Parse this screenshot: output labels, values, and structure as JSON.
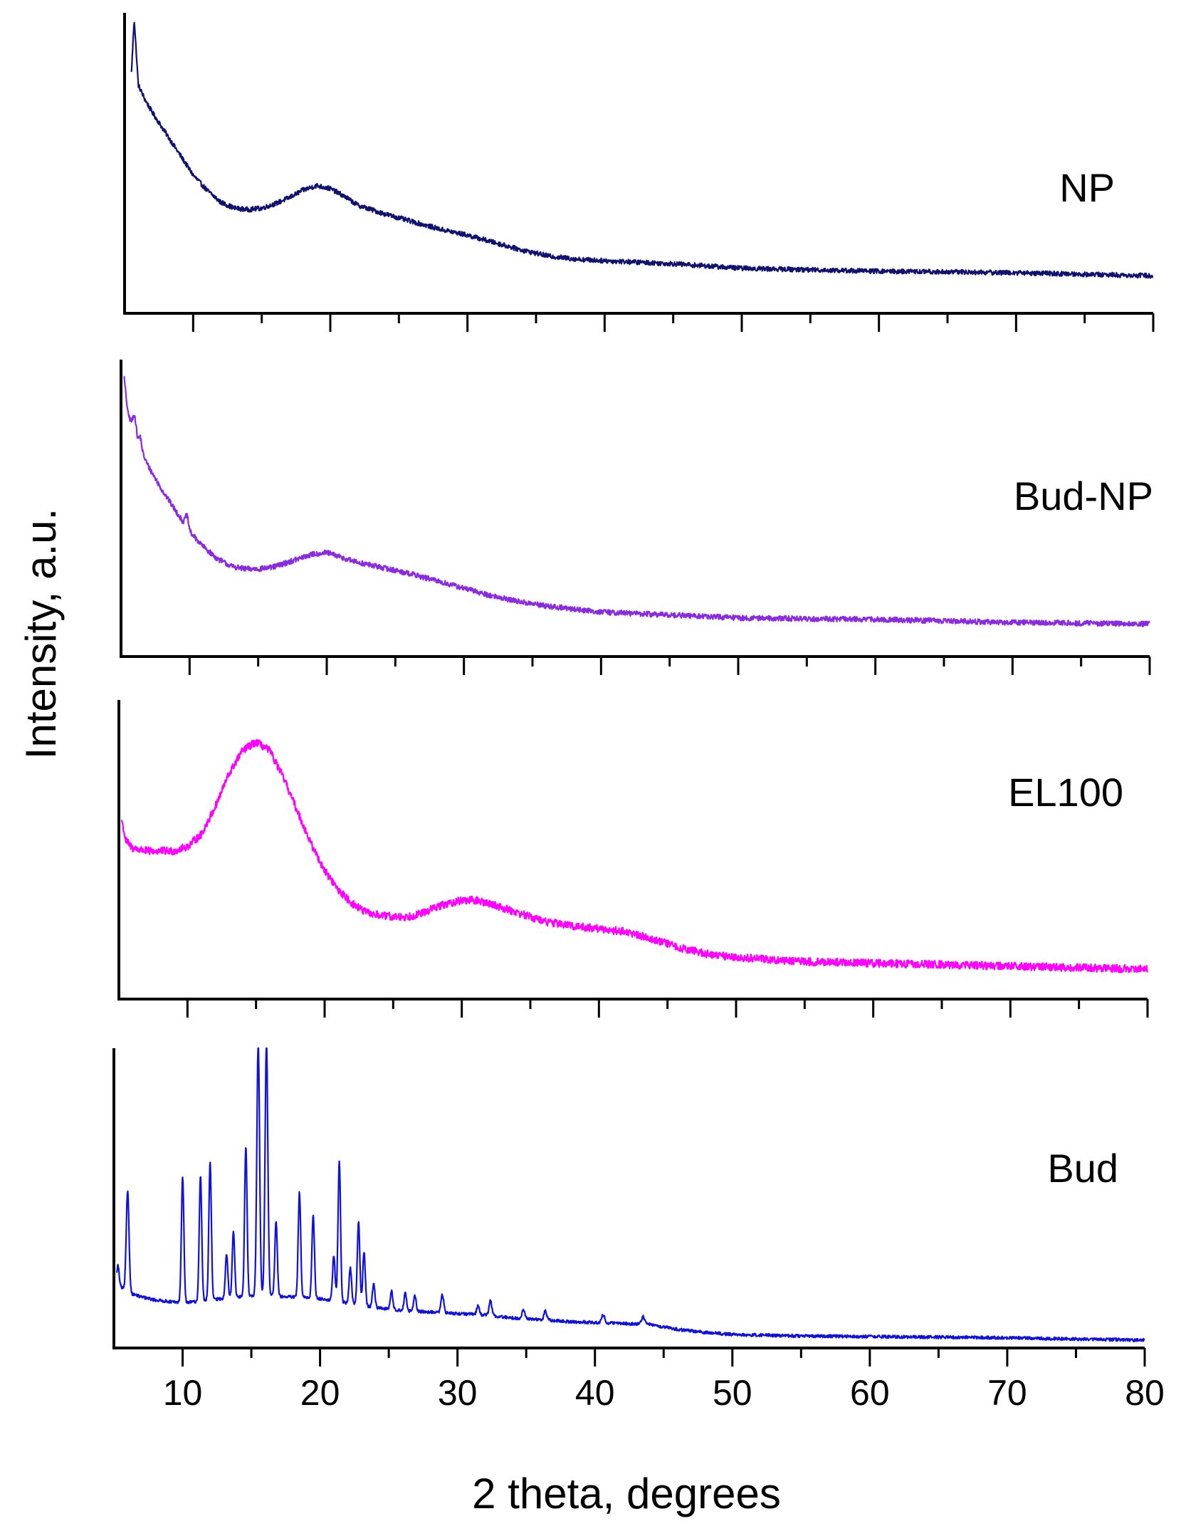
{
  "chart_data": {
    "type": "line",
    "title": "",
    "xlabel": "2 theta, degrees",
    "ylabel": "Intensity, a.u.",
    "xlim": [
      5,
      80
    ],
    "ylim": [
      0,
      100
    ],
    "x_ticks": [
      10,
      20,
      30,
      40,
      50,
      60,
      70,
      80
    ],
    "x_minor_step": 5,
    "y_ticks_shown": false,
    "grid": false,
    "layout": "stacked panels, shared x-axis",
    "panels": [
      {
        "name": "NP",
        "label": "NP",
        "color": "#101070",
        "noise": 0.8,
        "x": [
          5.5,
          5.7,
          6.0,
          6.5,
          7,
          8,
          9,
          10,
          11,
          12,
          13,
          14,
          15,
          16,
          17,
          18,
          19,
          20,
          21,
          22,
          24,
          26,
          28,
          30,
          32,
          34,
          36,
          38,
          40,
          45,
          50,
          55,
          60,
          65,
          70,
          75,
          80
        ],
        "y": [
          80,
          98,
          76,
          71,
          67,
          60,
          53,
          46,
          41,
          37,
          35,
          34.5,
          35,
          36.5,
          38.5,
          41,
          42.5,
          41.5,
          39,
          36,
          33,
          30.5,
          28,
          26,
          23.5,
          21,
          19,
          18,
          17.5,
          16.5,
          15,
          14.5,
          14,
          13.8,
          13.5,
          13,
          12.5
        ],
        "peaks": []
      },
      {
        "name": "Bud-NP",
        "label": "Bud-NP",
        "color": "#8a2be2",
        "noise": 0.9,
        "x": [
          5.2,
          5.5,
          5.8,
          6.2,
          6.6,
          7,
          8,
          9,
          10,
          11,
          12,
          13,
          14,
          15,
          16,
          17,
          18,
          19,
          20,
          21,
          22,
          24,
          26,
          28,
          30,
          32,
          34,
          36,
          38,
          40,
          45,
          50,
          60,
          70,
          80
        ],
        "y": [
          95,
          82,
          78,
          72,
          68,
          64,
          56,
          49,
          42,
          37,
          33,
          30.5,
          29.5,
          29.5,
          30,
          31.5,
          33,
          34.5,
          35,
          33.5,
          32,
          30,
          28,
          25.5,
          23,
          20.5,
          18.5,
          17,
          16,
          15,
          14,
          13,
          12.5,
          11.5,
          11
        ],
        "peaks": [
          [
            9.8,
            4,
            0.12
          ],
          [
            6.0,
            6,
            0.12
          ],
          [
            6.4,
            4,
            0.1
          ]
        ]
      },
      {
        "name": "EL100",
        "label": "EL100",
        "color": "#ff00ff",
        "noise": 1.3,
        "x": [
          5.2,
          5.5,
          6,
          7,
          8,
          9,
          10,
          11,
          12,
          13,
          14,
          15,
          16,
          17,
          18,
          19,
          20,
          21,
          22,
          23,
          24,
          25,
          26,
          27,
          28,
          29,
          30,
          31,
          32,
          33,
          34,
          35,
          36,
          38,
          40,
          42,
          44,
          46,
          48,
          50,
          55,
          60,
          65,
          70,
          75,
          80
        ],
        "y": [
          60,
          53,
          50.5,
          49.5,
          49.5,
          49.5,
          51,
          55,
          64,
          75,
          83,
          86,
          83,
          74,
          63,
          52,
          43,
          36.5,
          32,
          29,
          28,
          27.5,
          27.5,
          28.5,
          30.5,
          32,
          33,
          33,
          32,
          30.5,
          29,
          27.5,
          26,
          24.5,
          23.5,
          22.5,
          20,
          17,
          15,
          14,
          12.5,
          12,
          11.5,
          11,
          10.5,
          10
        ],
        "peaks": []
      },
      {
        "name": "Bud",
        "label": "Bud",
        "color": "#1010e0",
        "noise": 0.5,
        "x": [
          5.2,
          5.6,
          6,
          7,
          8,
          9,
          10,
          12,
          14,
          16,
          18,
          20,
          22,
          24,
          26,
          28,
          30,
          32,
          34,
          36,
          38,
          40,
          42,
          44,
          46,
          48,
          50,
          55,
          60,
          70,
          80
        ],
        "y": [
          22,
          20,
          18.5,
          17,
          16,
          15.5,
          15,
          16,
          17,
          17.5,
          17,
          16.5,
          15,
          13.5,
          12.5,
          12,
          11.5,
          11,
          10,
          9.5,
          8.8,
          8.5,
          8.2,
          7.8,
          6.2,
          5.2,
          4.5,
          4,
          3.8,
          3.4,
          2.6
        ],
        "peaks": [
          [
            5.3,
            6,
            0.08
          ],
          [
            6.0,
            34,
            0.1
          ],
          [
            10.0,
            42,
            0.09
          ],
          [
            11.3,
            42,
            0.09
          ],
          [
            12.0,
            46,
            0.09
          ],
          [
            13.2,
            15,
            0.09
          ],
          [
            13.7,
            22,
            0.09
          ],
          [
            14.6,
            50,
            0.09
          ],
          [
            15.5,
            85,
            0.1
          ],
          [
            16.1,
            85,
            0.1
          ],
          [
            16.8,
            25,
            0.09
          ],
          [
            18.5,
            35,
            0.09
          ],
          [
            19.5,
            28,
            0.09
          ],
          [
            21.0,
            15,
            0.09
          ],
          [
            21.4,
            47,
            0.09
          ],
          [
            22.2,
            12,
            0.09
          ],
          [
            22.8,
            28,
            0.09
          ],
          [
            23.2,
            18,
            0.09
          ],
          [
            23.9,
            8,
            0.09
          ],
          [
            25.2,
            6,
            0.09
          ],
          [
            26.2,
            6,
            0.09
          ],
          [
            26.9,
            5,
            0.09
          ],
          [
            28.9,
            6,
            0.1
          ],
          [
            31.5,
            3,
            0.1
          ],
          [
            32.4,
            5,
            0.1
          ],
          [
            34.8,
            3,
            0.1
          ],
          [
            36.4,
            3,
            0.1
          ],
          [
            40.6,
            2.5,
            0.12
          ],
          [
            43.5,
            2.5,
            0.12
          ]
        ]
      }
    ]
  }
}
